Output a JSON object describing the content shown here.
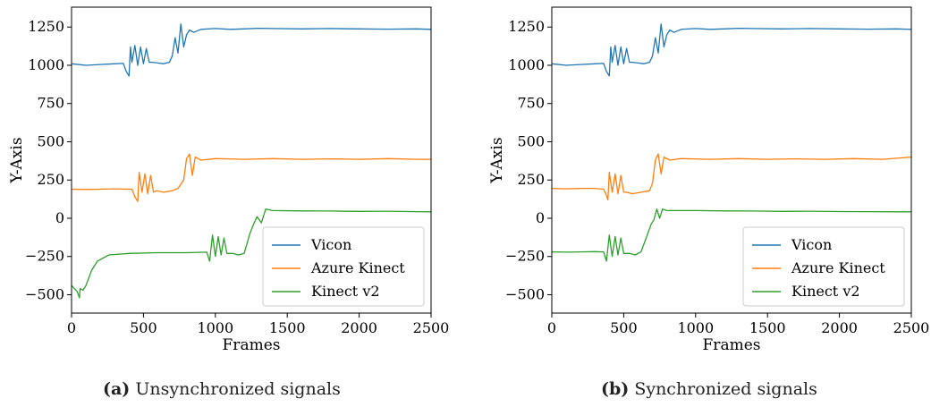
{
  "chart_data": [
    {
      "type": "line",
      "caption": {
        "tag": "(a)",
        "text": "Unsynchronized signals"
      },
      "xlabel": "Frames",
      "ylabel": "Y-Axis",
      "xlim": [
        0,
        2500
      ],
      "ylim": [
        -620,
        1380
      ],
      "xticks": [
        0,
        500,
        1000,
        1500,
        2000,
        2500
      ],
      "yticks": [
        -500,
        -250,
        0,
        250,
        500,
        750,
        1000,
        1250
      ],
      "legend": "lower-right",
      "series": [
        {
          "name": "Vicon",
          "color": "#1f77b4",
          "points": [
            [
              0,
              1010
            ],
            [
              100,
              1000
            ],
            [
              200,
              1005
            ],
            [
              300,
              1010
            ],
            [
              360,
              1012
            ],
            [
              380,
              960
            ],
            [
              400,
              930
            ],
            [
              410,
              1120
            ],
            [
              420,
              1020
            ],
            [
              440,
              1130
            ],
            [
              460,
              1000
            ],
            [
              480,
              1120
            ],
            [
              500,
              1010
            ],
            [
              520,
              1110
            ],
            [
              540,
              1020
            ],
            [
              560,
              1020
            ],
            [
              600,
              1015
            ],
            [
              640,
              1010
            ],
            [
              680,
              1020
            ],
            [
              700,
              1060
            ],
            [
              720,
              1180
            ],
            [
              740,
              1080
            ],
            [
              760,
              1270
            ],
            [
              780,
              1120
            ],
            [
              800,
              1200
            ],
            [
              820,
              1230
            ],
            [
              850,
              1215
            ],
            [
              900,
              1235
            ],
            [
              1000,
              1240
            ],
            [
              1100,
              1235
            ],
            [
              1200,
              1238
            ],
            [
              1300,
              1242
            ],
            [
              1400,
              1240
            ],
            [
              1600,
              1238
            ],
            [
              1800,
              1240
            ],
            [
              2000,
              1238
            ],
            [
              2200,
              1236
            ],
            [
              2400,
              1238
            ],
            [
              2500,
              1235
            ]
          ]
        },
        {
          "name": "Azure Kinect",
          "color": "#ff7f0e",
          "points": [
            [
              0,
              190
            ],
            [
              100,
              188
            ],
            [
              200,
              190
            ],
            [
              300,
              192
            ],
            [
              420,
              190
            ],
            [
              440,
              140
            ],
            [
              460,
              110
            ],
            [
              470,
              300
            ],
            [
              490,
              170
            ],
            [
              510,
              290
            ],
            [
              530,
              160
            ],
            [
              550,
              280
            ],
            [
              570,
              170
            ],
            [
              590,
              180
            ],
            [
              640,
              170
            ],
            [
              700,
              180
            ],
            [
              740,
              195
            ],
            [
              780,
              250
            ],
            [
              800,
              390
            ],
            [
              820,
              420
            ],
            [
              840,
              280
            ],
            [
              860,
              400
            ],
            [
              900,
              380
            ],
            [
              1000,
              390
            ],
            [
              1200,
              385
            ],
            [
              1400,
              390
            ],
            [
              1600,
              385
            ],
            [
              1800,
              388
            ],
            [
              2000,
              385
            ],
            [
              2200,
              390
            ],
            [
              2400,
              385
            ],
            [
              2500,
              385
            ]
          ]
        },
        {
          "name": "Kinect v2",
          "color": "#2ca02c",
          "points": [
            [
              0,
              -440
            ],
            [
              20,
              -460
            ],
            [
              40,
              -480
            ],
            [
              55,
              -520
            ],
            [
              60,
              -460
            ],
            [
              80,
              -470
            ],
            [
              100,
              -440
            ],
            [
              140,
              -340
            ],
            [
              180,
              -280
            ],
            [
              260,
              -240
            ],
            [
              400,
              -230
            ],
            [
              600,
              -225
            ],
            [
              800,
              -225
            ],
            [
              940,
              -222
            ],
            [
              960,
              -280
            ],
            [
              980,
              -110
            ],
            [
              1000,
              -250
            ],
            [
              1020,
              -120
            ],
            [
              1040,
              -240
            ],
            [
              1060,
              -130
            ],
            [
              1080,
              -230
            ],
            [
              1120,
              -230
            ],
            [
              1160,
              -240
            ],
            [
              1200,
              -230
            ],
            [
              1240,
              -100
            ],
            [
              1270,
              -30
            ],
            [
              1290,
              10
            ],
            [
              1320,
              -30
            ],
            [
              1350,
              60
            ],
            [
              1400,
              50
            ],
            [
              1600,
              48
            ],
            [
              1800,
              47
            ],
            [
              2000,
              45
            ],
            [
              2200,
              46
            ],
            [
              2400,
              43
            ],
            [
              2500,
              42
            ]
          ]
        }
      ]
    },
    {
      "type": "line",
      "caption": {
        "tag": "(b)",
        "text": "Synchronized signals"
      },
      "xlabel": "Frames",
      "ylabel": "Y-Axis",
      "xlim": [
        0,
        2500
      ],
      "ylim": [
        -620,
        1380
      ],
      "xticks": [
        0,
        500,
        1000,
        1500,
        2000,
        2500
      ],
      "yticks": [
        -500,
        -250,
        0,
        250,
        500,
        750,
        1000,
        1250
      ],
      "legend": "lower-right",
      "series": [
        {
          "name": "Vicon",
          "color": "#1f77b4",
          "points": [
            [
              0,
              1010
            ],
            [
              100,
              1000
            ],
            [
              200,
              1005
            ],
            [
              300,
              1010
            ],
            [
              360,
              1012
            ],
            [
              380,
              960
            ],
            [
              400,
              930
            ],
            [
              410,
              1120
            ],
            [
              420,
              1020
            ],
            [
              440,
              1130
            ],
            [
              460,
              1000
            ],
            [
              480,
              1120
            ],
            [
              500,
              1010
            ],
            [
              520,
              1110
            ],
            [
              540,
              1020
            ],
            [
              560,
              1020
            ],
            [
              600,
              1015
            ],
            [
              640,
              1010
            ],
            [
              680,
              1020
            ],
            [
              700,
              1060
            ],
            [
              720,
              1180
            ],
            [
              740,
              1080
            ],
            [
              760,
              1270
            ],
            [
              780,
              1120
            ],
            [
              800,
              1200
            ],
            [
              820,
              1230
            ],
            [
              850,
              1215
            ],
            [
              900,
              1235
            ],
            [
              1000,
              1240
            ],
            [
              1100,
              1235
            ],
            [
              1200,
              1238
            ],
            [
              1300,
              1242
            ],
            [
              1400,
              1240
            ],
            [
              1600,
              1238
            ],
            [
              1800,
              1240
            ],
            [
              2000,
              1238
            ],
            [
              2200,
              1236
            ],
            [
              2400,
              1238
            ],
            [
              2500,
              1235
            ]
          ]
        },
        {
          "name": "Azure Kinect",
          "color": "#ff7f0e",
          "points": [
            [
              0,
              195
            ],
            [
              100,
              192
            ],
            [
              200,
              195
            ],
            [
              300,
              195
            ],
            [
              360,
              190
            ],
            [
              380,
              150
            ],
            [
              390,
              120
            ],
            [
              400,
              300
            ],
            [
              420,
              170
            ],
            [
              440,
              290
            ],
            [
              460,
              160
            ],
            [
              480,
              280
            ],
            [
              500,
              170
            ],
            [
              520,
              170
            ],
            [
              560,
              160
            ],
            [
              620,
              170
            ],
            [
              680,
              180
            ],
            [
              700,
              230
            ],
            [
              720,
              380
            ],
            [
              740,
              420
            ],
            [
              760,
              290
            ],
            [
              780,
              400
            ],
            [
              820,
              380
            ],
            [
              900,
              390
            ],
            [
              1100,
              385
            ],
            [
              1300,
              390
            ],
            [
              1500,
              385
            ],
            [
              1700,
              388
            ],
            [
              1900,
              385
            ],
            [
              2100,
              390
            ],
            [
              2300,
              385
            ],
            [
              2500,
              400
            ]
          ]
        },
        {
          "name": "Kinect v2",
          "color": "#2ca02c",
          "points": [
            [
              0,
              -220
            ],
            [
              100,
              -222
            ],
            [
              200,
              -220
            ],
            [
              300,
              -218
            ],
            [
              360,
              -220
            ],
            [
              380,
              -280
            ],
            [
              400,
              -110
            ],
            [
              420,
              -250
            ],
            [
              440,
              -120
            ],
            [
              460,
              -240
            ],
            [
              480,
              -130
            ],
            [
              500,
              -230
            ],
            [
              540,
              -230
            ],
            [
              580,
              -240
            ],
            [
              620,
              -220
            ],
            [
              660,
              -120
            ],
            [
              690,
              -40
            ],
            [
              710,
              -10
            ],
            [
              730,
              60
            ],
            [
              750,
              0
            ],
            [
              770,
              60
            ],
            [
              800,
              50
            ],
            [
              1000,
              50
            ],
            [
              1200,
              48
            ],
            [
              1400,
              47
            ],
            [
              1600,
              45
            ],
            [
              1800,
              46
            ],
            [
              2000,
              44
            ],
            [
              2200,
              43
            ],
            [
              2400,
              42
            ],
            [
              2500,
              42
            ]
          ]
        }
      ]
    }
  ]
}
